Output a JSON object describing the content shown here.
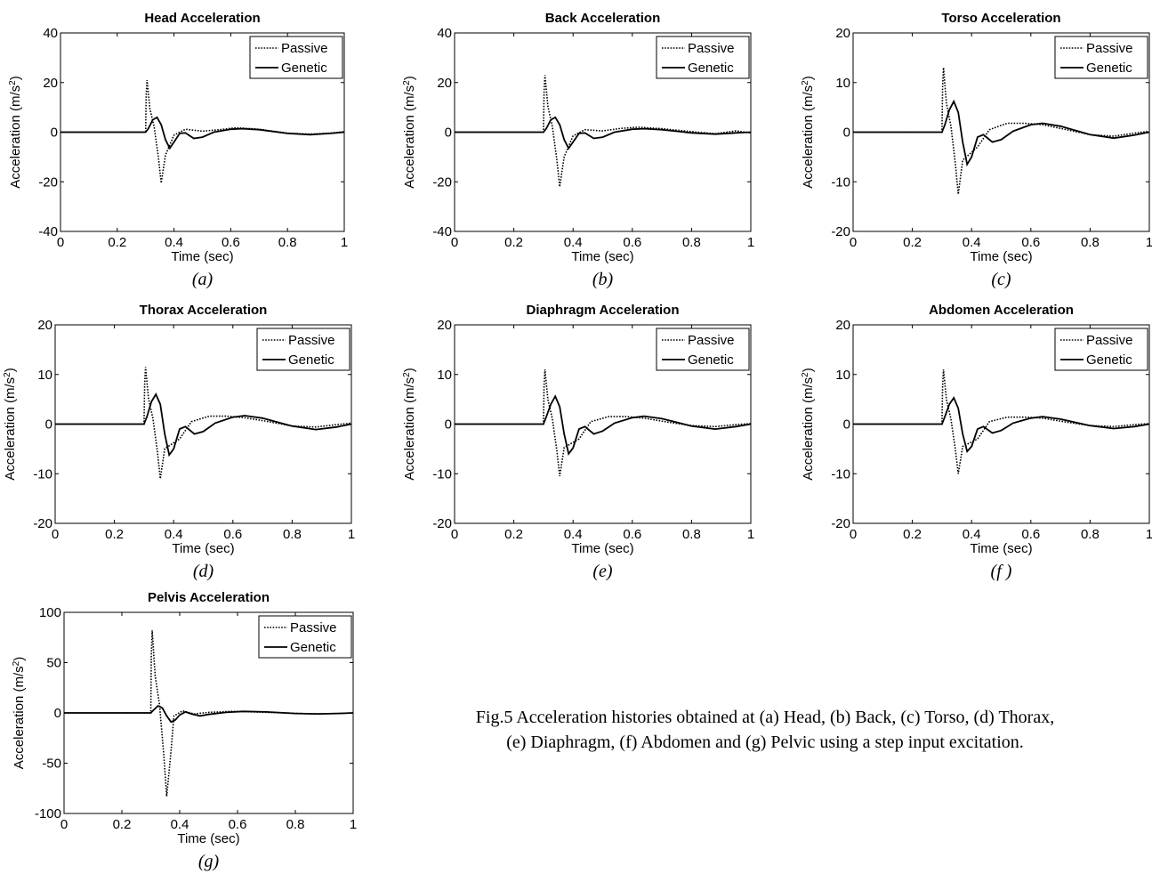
{
  "chart_data": [
    {
      "type": "line",
      "id": "a",
      "subtitle": "(a)",
      "title": "Head Acceleration",
      "xlabel": "Time (sec)",
      "ylabel": "Acceleration (m/s",
      "ylabel_sup": "2",
      "ylabel_end": ")",
      "xlim": [
        0,
        1
      ],
      "ylim": [
        -40,
        40
      ],
      "xticks": [
        "0",
        "0.2",
        "0.4",
        "0.6",
        "0.8",
        "1"
      ],
      "yticks": [
        -40,
        -20,
        0,
        20,
        40
      ],
      "legend": [
        "Passive",
        "Genetic"
      ],
      "passive": {
        "peak": 21,
        "trough": -20.5,
        "osc": [
          [
            0.4,
            -1.2
          ],
          [
            0.44,
            1.2
          ],
          [
            0.5,
            0.4
          ],
          [
            0.56,
            1.0
          ],
          [
            0.62,
            1.8
          ],
          [
            0.7,
            1.2
          ],
          [
            0.8,
            -0.4
          ],
          [
            0.88,
            -0.8
          ],
          [
            0.95,
            -0.4
          ],
          [
            1.0,
            0.2
          ]
        ]
      },
      "genetic": {
        "points": [
          [
            0.0,
            0
          ],
          [
            0.3,
            0
          ],
          [
            0.31,
            1.5
          ],
          [
            0.325,
            5.0
          ],
          [
            0.34,
            6.0
          ],
          [
            0.355,
            3.0
          ],
          [
            0.37,
            -3.0
          ],
          [
            0.385,
            -6.5
          ],
          [
            0.4,
            -4.0
          ],
          [
            0.42,
            -0.5
          ],
          [
            0.44,
            -0.3
          ],
          [
            0.47,
            -2.5
          ],
          [
            0.5,
            -2.0
          ],
          [
            0.54,
            0.0
          ],
          [
            0.6,
            1.2
          ],
          [
            0.64,
            1.4
          ],
          [
            0.7,
            1.0
          ],
          [
            0.8,
            -0.5
          ],
          [
            0.88,
            -1.0
          ],
          [
            0.95,
            -0.5
          ],
          [
            1.0,
            0.0
          ]
        ]
      }
    },
    {
      "type": "line",
      "id": "b",
      "subtitle": "(b)",
      "title": "Back Acceleration",
      "xlabel": "Time (sec)",
      "ylabel": "Acceleration (m/s",
      "ylabel_sup": "2",
      "ylabel_end": ")",
      "xlim": [
        0,
        1
      ],
      "ylim": [
        -40,
        40
      ],
      "xticks": [
        "0",
        "0.2",
        "0.4",
        "0.6",
        "0.8",
        "1"
      ],
      "yticks": [
        -40,
        -20,
        0,
        20,
        40
      ],
      "legend": [
        "Passive",
        "Genetic"
      ],
      "passive": {
        "peak": 23,
        "trough": -22,
        "osc": [
          [
            0.4,
            -1.5
          ],
          [
            0.44,
            1.0
          ],
          [
            0.5,
            0.5
          ],
          [
            0.56,
            1.5
          ],
          [
            0.62,
            2.0
          ],
          [
            0.7,
            1.4
          ],
          [
            0.8,
            0.2
          ],
          [
            0.88,
            -0.6
          ],
          [
            0.95,
            0.5
          ],
          [
            1.0,
            -0.3
          ]
        ]
      },
      "genetic": {
        "points": [
          [
            0.0,
            0
          ],
          [
            0.3,
            0
          ],
          [
            0.31,
            1.5
          ],
          [
            0.325,
            5.0
          ],
          [
            0.34,
            6.0
          ],
          [
            0.355,
            3.0
          ],
          [
            0.37,
            -3.0
          ],
          [
            0.385,
            -6.5
          ],
          [
            0.4,
            -4.0
          ],
          [
            0.42,
            -0.5
          ],
          [
            0.44,
            -0.3
          ],
          [
            0.47,
            -2.5
          ],
          [
            0.5,
            -2.0
          ],
          [
            0.54,
            0.0
          ],
          [
            0.6,
            1.2
          ],
          [
            0.64,
            1.4
          ],
          [
            0.7,
            1.0
          ],
          [
            0.8,
            -0.3
          ],
          [
            0.88,
            -0.8
          ],
          [
            0.95,
            -0.3
          ],
          [
            1.0,
            0.0
          ]
        ]
      }
    },
    {
      "type": "line",
      "id": "c",
      "subtitle": "(c)",
      "title": "Torso Acceleration",
      "xlabel": "Time (sec)",
      "ylabel": "Acceleration (m/s",
      "ylabel_sup": "2",
      "ylabel_end": ")",
      "xlim": [
        0,
        1
      ],
      "ylim": [
        -20,
        20
      ],
      "xticks": [
        "0",
        "0.2",
        "0.4",
        "0.6",
        "0.8",
        "1"
      ],
      "yticks": [
        -20,
        -10,
        0,
        10,
        20
      ],
      "legend": [
        "Passive",
        "Genetic"
      ],
      "passive": {
        "peak": 13,
        "trough": -12.5,
        "osc": [
          [
            0.42,
            -3.0
          ],
          [
            0.46,
            0.5
          ],
          [
            0.52,
            1.8
          ],
          [
            0.58,
            1.8
          ],
          [
            0.64,
            1.5
          ],
          [
            0.72,
            0.5
          ],
          [
            0.8,
            -0.5
          ],
          [
            0.88,
            -0.8
          ],
          [
            0.95,
            -0.2
          ],
          [
            1.0,
            0.2
          ]
        ]
      },
      "genetic": {
        "points": [
          [
            0.0,
            0
          ],
          [
            0.3,
            0
          ],
          [
            0.31,
            1.5
          ],
          [
            0.325,
            4.5
          ],
          [
            0.34,
            6.2
          ],
          [
            0.355,
            4.0
          ],
          [
            0.37,
            -2.0
          ],
          [
            0.385,
            -6.5
          ],
          [
            0.4,
            -5.0
          ],
          [
            0.42,
            -1.0
          ],
          [
            0.44,
            -0.5
          ],
          [
            0.47,
            -2.0
          ],
          [
            0.5,
            -1.5
          ],
          [
            0.54,
            0.2
          ],
          [
            0.6,
            1.5
          ],
          [
            0.64,
            1.8
          ],
          [
            0.7,
            1.2
          ],
          [
            0.8,
            -0.5
          ],
          [
            0.88,
            -1.2
          ],
          [
            0.95,
            -0.6
          ],
          [
            1.0,
            0.0
          ]
        ]
      }
    },
    {
      "type": "line",
      "id": "d",
      "subtitle": "(d)",
      "title": "Thorax Acceleration",
      "xlabel": "Time (sec)",
      "ylabel": "Acceleration (m/s",
      "ylabel_sup": "2",
      "ylabel_end": ")",
      "xlim": [
        0,
        1
      ],
      "ylim": [
        -20,
        20
      ],
      "xticks": [
        "0",
        "0.2",
        "0.4",
        "0.6",
        "0.8",
        "1"
      ],
      "yticks": [
        -20,
        -10,
        0,
        10,
        20
      ],
      "legend": [
        "Passive",
        "Genetic"
      ],
      "passive": {
        "peak": 11.5,
        "trough": -11,
        "osc": [
          [
            0.42,
            -3.0
          ],
          [
            0.46,
            0.5
          ],
          [
            0.52,
            1.6
          ],
          [
            0.58,
            1.6
          ],
          [
            0.64,
            1.3
          ],
          [
            0.72,
            0.5
          ],
          [
            0.8,
            -0.4
          ],
          [
            0.88,
            -0.6
          ],
          [
            0.95,
            -0.1
          ],
          [
            1.0,
            0.2
          ]
        ]
      },
      "genetic": {
        "points": [
          [
            0.0,
            0
          ],
          [
            0.3,
            0
          ],
          [
            0.31,
            1.5
          ],
          [
            0.325,
            4.5
          ],
          [
            0.34,
            6.0
          ],
          [
            0.355,
            4.0
          ],
          [
            0.37,
            -2.0
          ],
          [
            0.385,
            -6.2
          ],
          [
            0.4,
            -5.0
          ],
          [
            0.42,
            -1.0
          ],
          [
            0.44,
            -0.5
          ],
          [
            0.47,
            -2.0
          ],
          [
            0.5,
            -1.5
          ],
          [
            0.54,
            0.2
          ],
          [
            0.6,
            1.4
          ],
          [
            0.64,
            1.7
          ],
          [
            0.7,
            1.2
          ],
          [
            0.8,
            -0.4
          ],
          [
            0.88,
            -1.1
          ],
          [
            0.95,
            -0.6
          ],
          [
            1.0,
            0.0
          ]
        ]
      }
    },
    {
      "type": "line",
      "id": "e",
      "subtitle": "(e)",
      "title": "Diaphragm Acceleration",
      "xlabel": "Time (sec)",
      "ylabel": "Acceleration (m/s",
      "ylabel_sup": "2",
      "ylabel_end": ")",
      "xlim": [
        0,
        1
      ],
      "ylim": [
        -20,
        20
      ],
      "xticks": [
        "0",
        "0.2",
        "0.4",
        "0.6",
        "0.8",
        "1"
      ],
      "yticks": [
        -20,
        -10,
        0,
        10,
        20
      ],
      "legend": [
        "Passive",
        "Genetic"
      ],
      "passive": {
        "peak": 11,
        "trough": -10.5,
        "osc": [
          [
            0.42,
            -3.0
          ],
          [
            0.46,
            0.5
          ],
          [
            0.52,
            1.5
          ],
          [
            0.58,
            1.5
          ],
          [
            0.64,
            1.2
          ],
          [
            0.72,
            0.4
          ],
          [
            0.8,
            -0.3
          ],
          [
            0.88,
            -0.5
          ],
          [
            0.95,
            -0.1
          ],
          [
            1.0,
            0.1
          ]
        ]
      },
      "genetic": {
        "points": [
          [
            0.0,
            0
          ],
          [
            0.3,
            0
          ],
          [
            0.31,
            1.5
          ],
          [
            0.325,
            4.0
          ],
          [
            0.34,
            5.6
          ],
          [
            0.355,
            3.5
          ],
          [
            0.37,
            -2.0
          ],
          [
            0.385,
            -6.0
          ],
          [
            0.4,
            -4.8
          ],
          [
            0.42,
            -1.0
          ],
          [
            0.44,
            -0.5
          ],
          [
            0.47,
            -2.0
          ],
          [
            0.5,
            -1.4
          ],
          [
            0.54,
            0.2
          ],
          [
            0.6,
            1.3
          ],
          [
            0.64,
            1.6
          ],
          [
            0.7,
            1.1
          ],
          [
            0.8,
            -0.4
          ],
          [
            0.88,
            -1.0
          ],
          [
            0.95,
            -0.5
          ],
          [
            1.0,
            0.0
          ]
        ]
      }
    },
    {
      "type": "line",
      "id": "f",
      "subtitle": "(f )",
      "title": "Abdomen Acceleration",
      "xlabel": "Time (sec)",
      "ylabel": "Acceleration (m/s",
      "ylabel_sup": "2",
      "ylabel_end": ")",
      "xlim": [
        0,
        1
      ],
      "ylim": [
        -20,
        20
      ],
      "xticks": [
        "0",
        "0.2",
        "0.4",
        "0.6",
        "0.8",
        "1"
      ],
      "yticks": [
        -20,
        -10,
        0,
        10,
        20
      ],
      "legend": [
        "Passive",
        "Genetic"
      ],
      "passive": {
        "peak": 11,
        "trough": -10,
        "osc": [
          [
            0.42,
            -3.0
          ],
          [
            0.46,
            0.5
          ],
          [
            0.52,
            1.4
          ],
          [
            0.58,
            1.4
          ],
          [
            0.64,
            1.2
          ],
          [
            0.72,
            0.4
          ],
          [
            0.8,
            -0.3
          ],
          [
            0.88,
            -0.5
          ],
          [
            0.95,
            -0.1
          ],
          [
            1.0,
            0.1
          ]
        ]
      },
      "genetic": {
        "points": [
          [
            0.0,
            0
          ],
          [
            0.3,
            0
          ],
          [
            0.31,
            1.5
          ],
          [
            0.325,
            4.0
          ],
          [
            0.34,
            5.3
          ],
          [
            0.355,
            3.2
          ],
          [
            0.37,
            -2.0
          ],
          [
            0.385,
            -5.5
          ],
          [
            0.4,
            -4.5
          ],
          [
            0.42,
            -1.0
          ],
          [
            0.44,
            -0.5
          ],
          [
            0.47,
            -1.8
          ],
          [
            0.5,
            -1.3
          ],
          [
            0.54,
            0.2
          ],
          [
            0.6,
            1.2
          ],
          [
            0.64,
            1.5
          ],
          [
            0.7,
            1.0
          ],
          [
            0.8,
            -0.3
          ],
          [
            0.88,
            -0.9
          ],
          [
            0.95,
            -0.5
          ],
          [
            1.0,
            0.0
          ]
        ]
      }
    },
    {
      "type": "line",
      "id": "g",
      "subtitle": "(g)",
      "title": "Pelvis Acceleration",
      "xlabel": "Time (sec)",
      "ylabel": "Acceleration (m/s",
      "ylabel_sup": "2",
      "ylabel_end": ")",
      "xlim": [
        0,
        1
      ],
      "ylim": [
        -100,
        100
      ],
      "xticks": [
        "0",
        "0.2",
        "0.4",
        "0.6",
        "0.8",
        "1"
      ],
      "yticks": [
        -100,
        -50,
        0,
        50,
        100
      ],
      "legend": [
        "Passive",
        "Genetic"
      ],
      "passive": {
        "peak": 82,
        "trough": -83,
        "osc": [
          [
            0.38,
            -3.0
          ],
          [
            0.41,
            2.0
          ],
          [
            0.45,
            -1.0
          ],
          [
            0.5,
            0.5
          ],
          [
            0.58,
            1.5
          ],
          [
            0.66,
            1.0
          ],
          [
            0.76,
            0.0
          ],
          [
            0.86,
            -1.0
          ],
          [
            0.95,
            -0.5
          ],
          [
            1.0,
            0.0
          ]
        ]
      },
      "genetic": {
        "points": [
          [
            0.0,
            0
          ],
          [
            0.3,
            0
          ],
          [
            0.31,
            3.0
          ],
          [
            0.325,
            7.0
          ],
          [
            0.34,
            5.0
          ],
          [
            0.355,
            -3.0
          ],
          [
            0.37,
            -9.0
          ],
          [
            0.385,
            -7.0
          ],
          [
            0.4,
            -2.0
          ],
          [
            0.42,
            1.0
          ],
          [
            0.44,
            -1.0
          ],
          [
            0.47,
            -3.0
          ],
          [
            0.5,
            -1.5
          ],
          [
            0.56,
            0.5
          ],
          [
            0.62,
            1.5
          ],
          [
            0.7,
            1.0
          ],
          [
            0.8,
            -0.5
          ],
          [
            0.88,
            -1.0
          ],
          [
            0.95,
            -0.5
          ],
          [
            1.0,
            0.0
          ]
        ]
      }
    }
  ],
  "caption": {
    "line1": "Fig.5 Acceleration histories obtained at (a) Head, (b) Back, (c) Torso, (d) Thorax,",
    "line2": "(e) Diaphragm, (f) Abdomen and (g) Pelvic using a step input excitation."
  }
}
